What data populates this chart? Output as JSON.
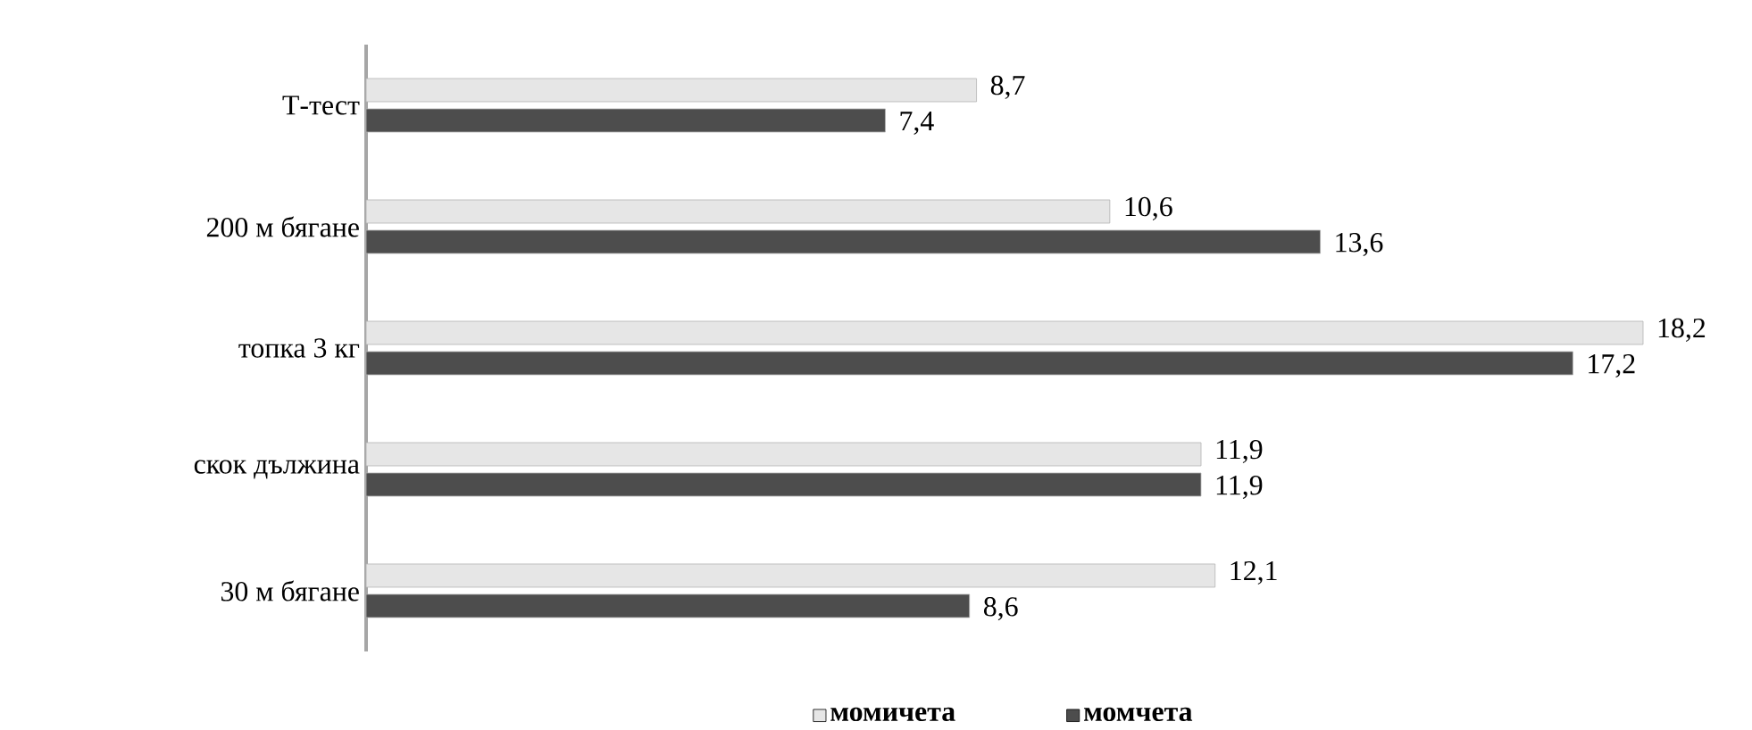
{
  "chart_data": {
    "type": "bar",
    "orientation": "horizontal",
    "categories": [
      "Т-тест",
      "200 м бягане",
      "топка 3 кг",
      "скок дължина",
      "30 м бягане"
    ],
    "series": [
      {
        "name": "момичета",
        "color": "#e6e6e6",
        "values": [
          8.7,
          10.6,
          18.2,
          11.9,
          12.1
        ],
        "value_labels": [
          "8,7",
          "10,6",
          "18,2",
          "11,9",
          "12,1"
        ]
      },
      {
        "name": "момчета",
        "color": "#4d4d4d",
        "values": [
          7.4,
          13.6,
          17.2,
          11.9,
          8.6
        ],
        "value_labels": [
          "7,4",
          "13,6",
          "17,2",
          "11,9",
          "8,6"
        ]
      }
    ],
    "tick_labels": "y",
    "legend": "bottom"
  }
}
